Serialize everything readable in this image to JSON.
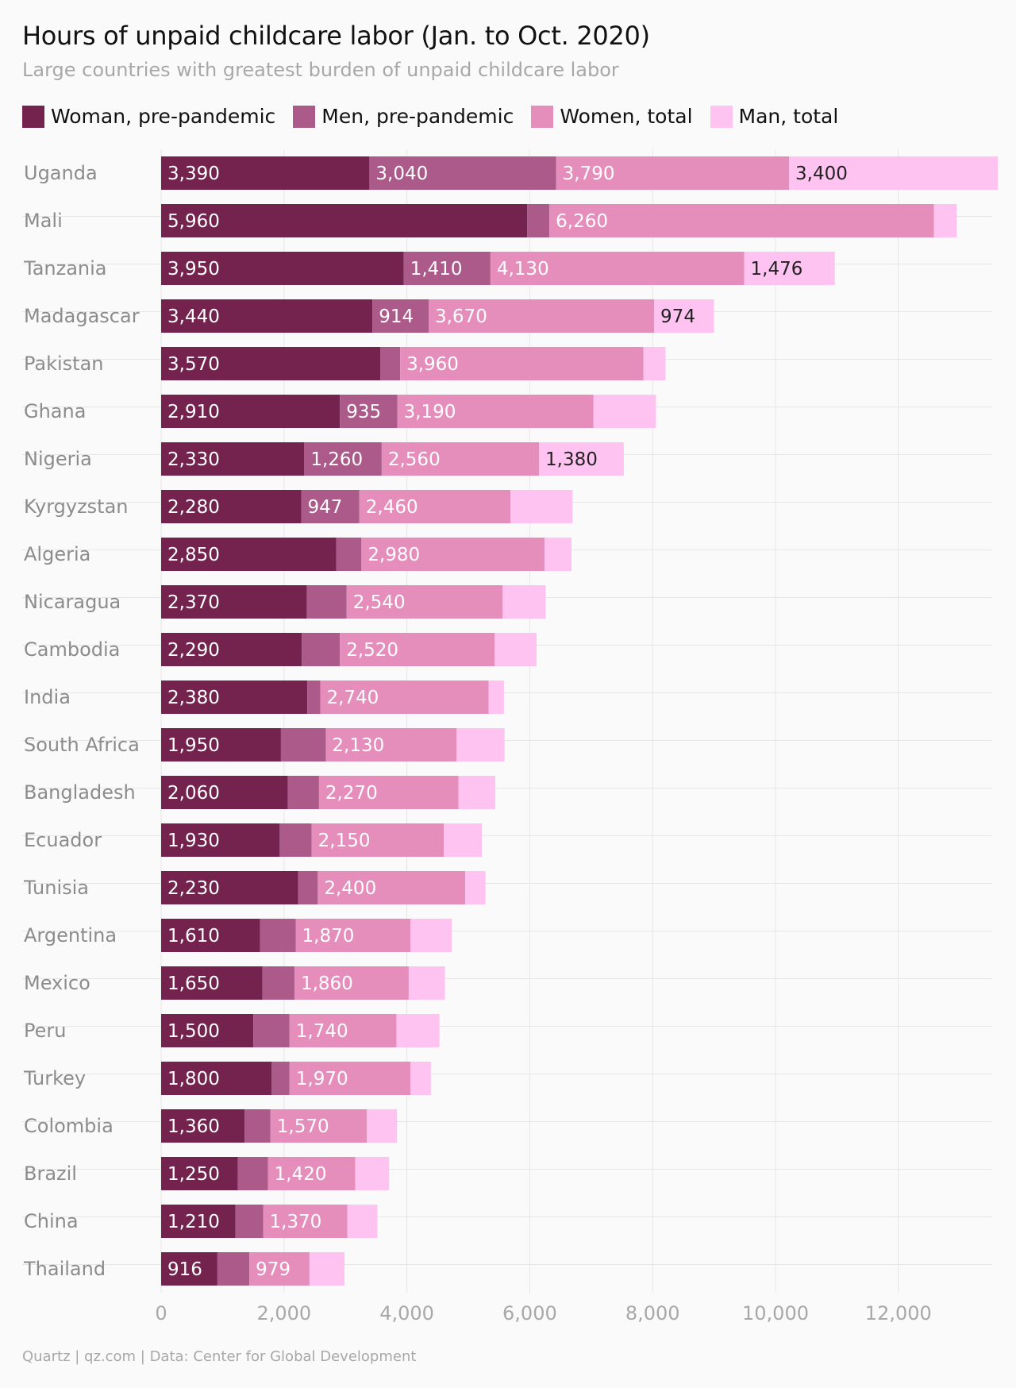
{
  "title": "Hours of unpaid childcare labor (Jan. to Oct. 2020)",
  "subtitle": "Large countries with greatest burden of unpaid childcare labor",
  "footer": "Quartz | qz.com | Data: Center for Global Development",
  "colors": {
    "women_pre": "#74234f",
    "men_pre": "#ab5a8a",
    "women_total": "#e58ebc",
    "men_total": "#ffc3f1",
    "grid": "#e6e6e6",
    "label_light": "#ffffff",
    "label_dark": "#222222"
  },
  "legend": [
    {
      "label": "Woman, pre-pandemic",
      "color": "#74234f"
    },
    {
      "label": "Men, pre-pandemic",
      "color": "#ab5a8a"
    },
    {
      "label": "Women, total",
      "color": "#e58ebc"
    },
    {
      "label": "Man, total",
      "color": "#ffc3f1"
    }
  ],
  "chart_data": {
    "type": "bar",
    "orientation": "horizontal",
    "stacked": true,
    "title": "Hours of unpaid childcare labor (Jan. to Oct. 2020)",
    "subtitle": "Large countries with greatest burden of unpaid childcare labor",
    "xlabel": "",
    "ylabel": "",
    "xlim": [
      0,
      13600
    ],
    "x_ticks": [
      0,
      2000,
      4000,
      6000,
      8000,
      10000,
      12000
    ],
    "x_tick_labels": [
      "0",
      "2,000",
      "4,000",
      "6,000",
      "8,000",
      "10,000",
      "12,000"
    ],
    "grid": true,
    "legend_position": "top",
    "categories": [
      "Uganda",
      "Mali",
      "Tanzania",
      "Madagascar",
      "Pakistan",
      "Ghana",
      "Nigeria",
      "Kyrgyzstan",
      "Algeria",
      "Nicaragua",
      "Cambodia",
      "India",
      "South Africa",
      "Bangladesh",
      "Ecuador",
      "Tunisia",
      "Argentina",
      "Mexico",
      "Peru",
      "Turkey",
      "Colombia",
      "Brazil",
      "China",
      "Thailand"
    ],
    "series": [
      {
        "name": "Woman, pre-pandemic",
        "values": [
          3390,
          5960,
          3950,
          3440,
          3570,
          2910,
          2330,
          2280,
          2850,
          2370,
          2290,
          2380,
          1950,
          2060,
          1930,
          2230,
          1610,
          1650,
          1500,
          1800,
          1360,
          1250,
          1210,
          916
        ],
        "labels": [
          "3,390",
          "5,960",
          "3,950",
          "3,440",
          "3,570",
          "2,910",
          "2,330",
          "2,280",
          "2,850",
          "2,370",
          "2,290",
          "2,380",
          "1,950",
          "2,060",
          "1,930",
          "2,230",
          "1,610",
          "1,650",
          "1,500",
          "1,800",
          "1,360",
          "1,250",
          "1,210",
          "916"
        ]
      },
      {
        "name": "Men, pre-pandemic",
        "values": [
          3040,
          360,
          1410,
          914,
          320,
          935,
          1260,
          947,
          410,
          650,
          620,
          210,
          730,
          510,
          520,
          320,
          580,
          520,
          590,
          290,
          420,
          490,
          450,
          520
        ],
        "labels": [
          "3,040",
          "",
          "1,410",
          "914",
          "",
          "935",
          "1,260",
          "947",
          "",
          "",
          "",
          "",
          "",
          "",
          "",
          "",
          "",
          "",
          "",
          "",
          "",
          "",
          "",
          ""
        ]
      },
      {
        "name": "Women, total",
        "values": [
          3790,
          6260,
          4130,
          3670,
          3960,
          3190,
          2560,
          2460,
          2980,
          2540,
          2520,
          2740,
          2130,
          2270,
          2150,
          2400,
          1870,
          1860,
          1740,
          1970,
          1570,
          1420,
          1370,
          979
        ],
        "labels": [
          "3,790",
          "6,260",
          "4,130",
          "3,670",
          "3,960",
          "3,190",
          "2,560",
          "2,460",
          "2,980",
          "2,540",
          "2,520",
          "2,740",
          "2,130",
          "2,270",
          "2,150",
          "2,400",
          "1,870",
          "1,860",
          "1,740",
          "1,970",
          "1,570",
          "1,420",
          "1,370",
          "979"
        ]
      },
      {
        "name": "Man, total",
        "values": [
          3400,
          370,
          1476,
          974,
          360,
          1020,
          1380,
          1010,
          440,
          700,
          680,
          250,
          780,
          600,
          620,
          330,
          670,
          590,
          700,
          330,
          490,
          550,
          490,
          570
        ],
        "labels": [
          "3,400",
          "",
          "1,476",
          "974",
          "",
          "",
          "1,380",
          "",
          "",
          "",
          "",
          "",
          "",
          "",
          "",
          "",
          "",
          "",
          "",
          "",
          "",
          "",
          "",
          ""
        ]
      }
    ]
  }
}
